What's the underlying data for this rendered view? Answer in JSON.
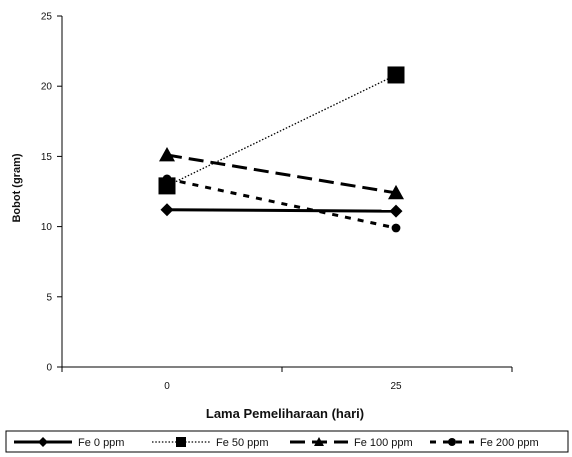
{
  "chart_data": {
    "type": "line",
    "xlabel": "Lama Pemeliharaan (hari)",
    "ylabel": "Bobot (gram)",
    "x": [
      "0",
      "25"
    ],
    "ylim": [
      0,
      25
    ],
    "yticks": [
      "0",
      "5",
      "10",
      "15",
      "20",
      "25"
    ],
    "grid": false,
    "legend_position": "bottom",
    "series": [
      {
        "name": "Fe 0 ppm",
        "values": [
          11.2,
          11.1
        ],
        "marker": "diamond",
        "line": "solid-thick",
        "color": "#000000"
      },
      {
        "name": "Fe 50 ppm",
        "values": [
          12.9,
          20.8
        ],
        "marker": "square",
        "line": "dotted",
        "color": "#000000"
      },
      {
        "name": "Fe 100 ppm",
        "values": [
          15.1,
          12.4
        ],
        "marker": "triangle",
        "line": "long-dash",
        "color": "#000000"
      },
      {
        "name": "Fe 200 ppm",
        "values": [
          13.4,
          9.9
        ],
        "marker": "circle",
        "line": "short-dash",
        "color": "#000000"
      }
    ]
  }
}
